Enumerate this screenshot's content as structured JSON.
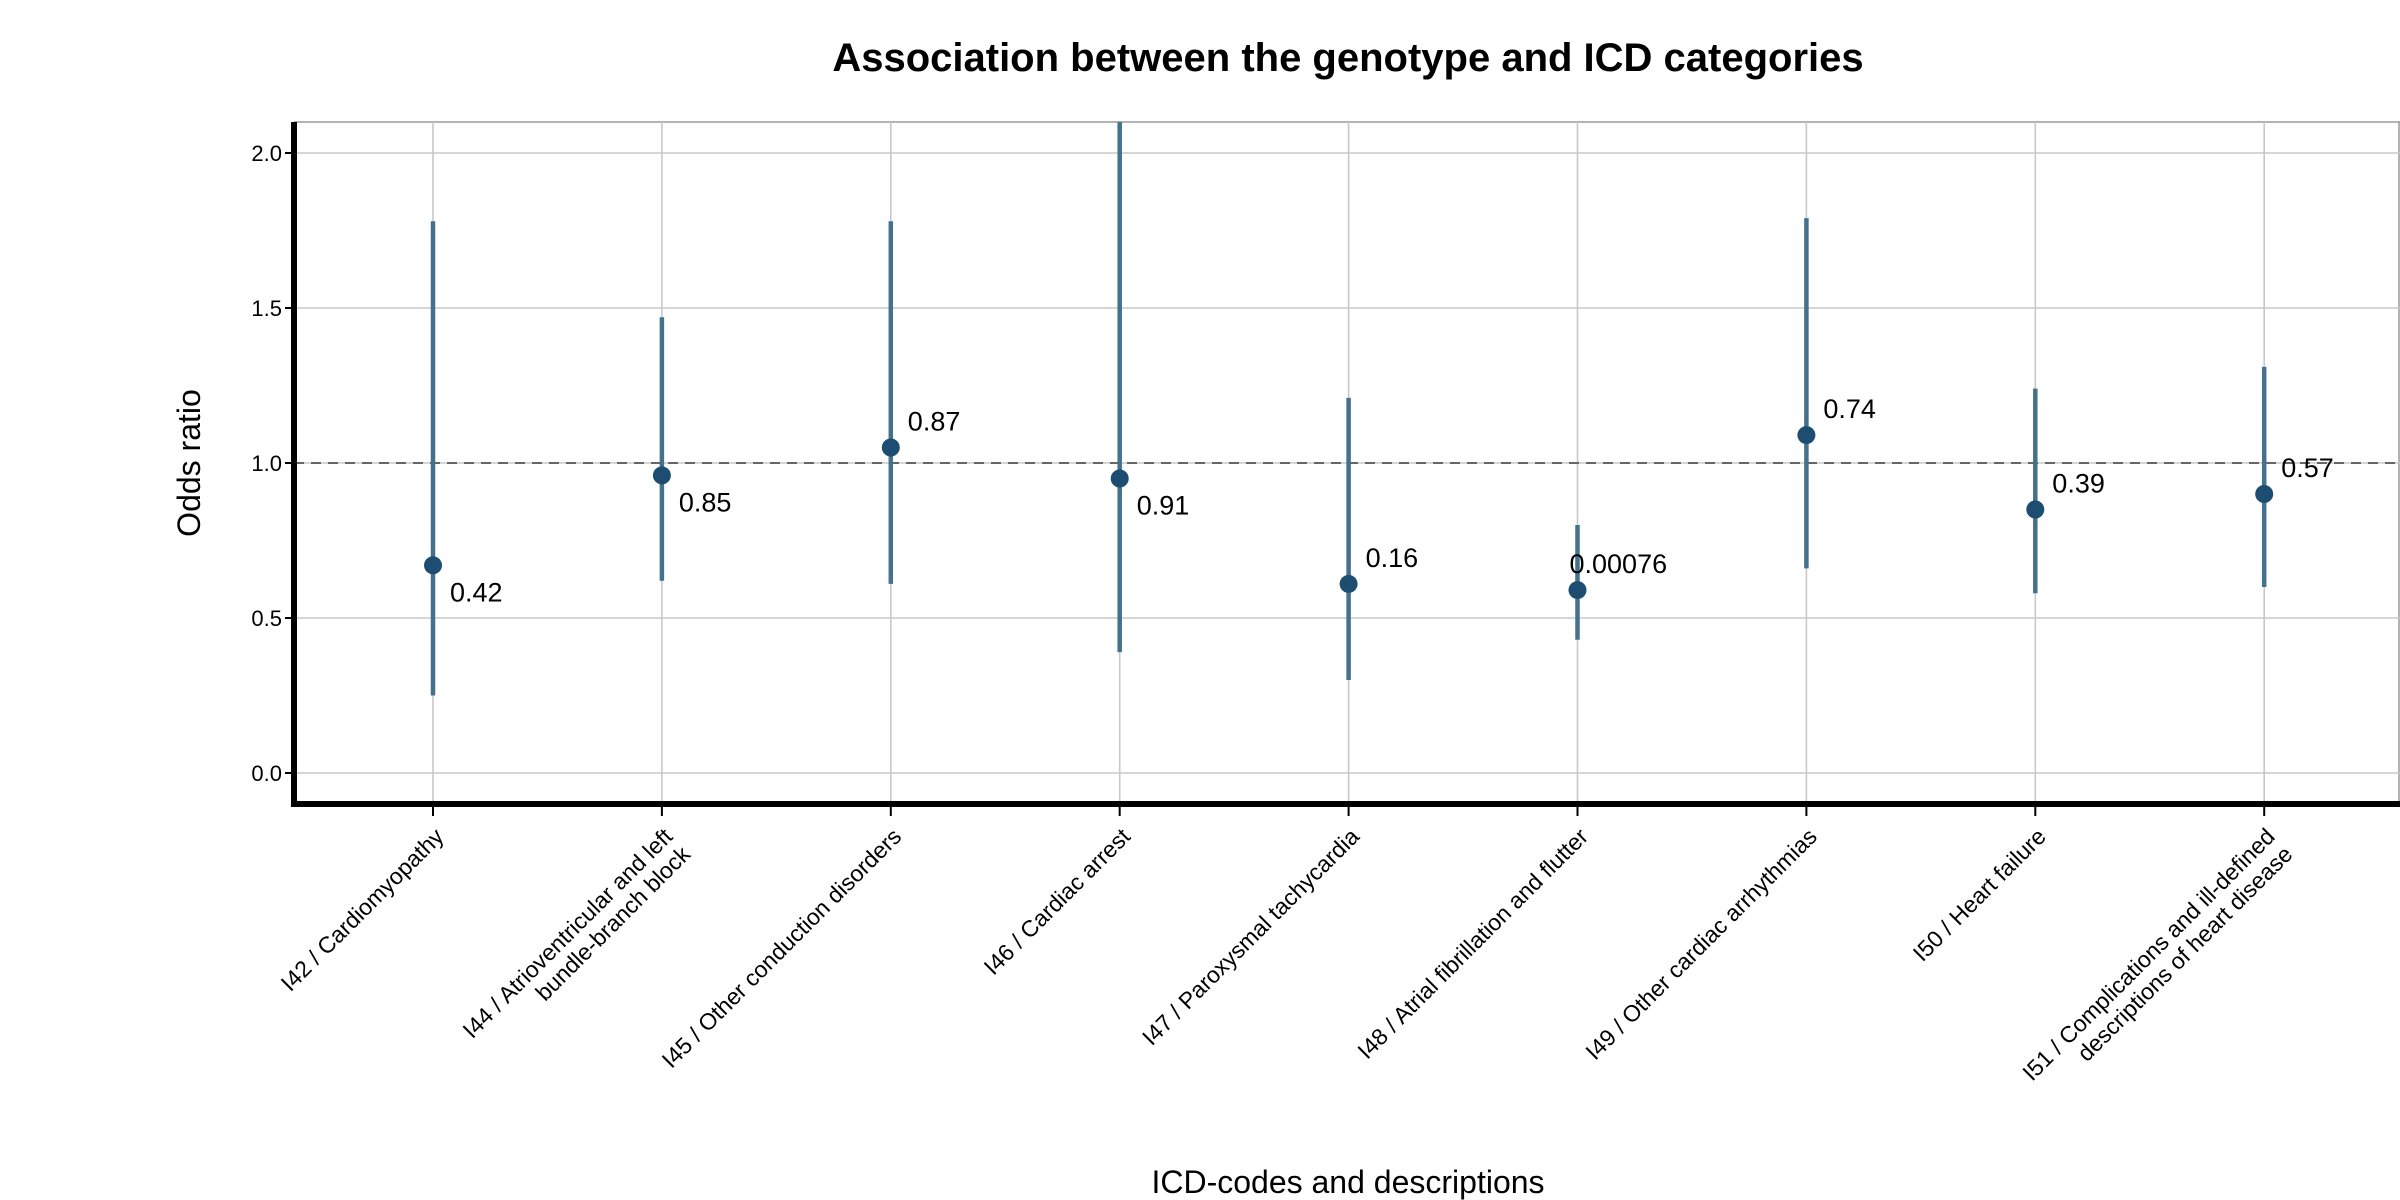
{
  "chart_data": {
    "type": "scatter",
    "title": "Association between the genotype and ICD categories",
    "xlabel": "ICD-codes and descriptions",
    "ylabel": "Odds ratio",
    "ylim": [
      -0.1,
      2.1
    ],
    "yticks": [
      "0.0",
      "0.5",
      "1.0",
      "1.5",
      "2.0"
    ],
    "reference_line": 1.0,
    "grid": true,
    "legend": "none",
    "colors": {
      "point": "#1d4e72",
      "interval": "#44718c",
      "reference": "#555555"
    },
    "categories": [
      {
        "code": "I42",
        "lines": [
          "I42 / Cardiomyopathy"
        ],
        "or": 0.67,
        "low": 0.25,
        "high": 1.78,
        "label": "0.42"
      },
      {
        "code": "I44",
        "lines": [
          "I44 / Atrioventricular and left",
          "bundle-branch block"
        ],
        "or": 0.96,
        "low": 0.62,
        "high": 1.47,
        "label": "0.85"
      },
      {
        "code": "I45",
        "lines": [
          "I45 / Other conduction disorders"
        ],
        "or": 1.05,
        "low": 0.61,
        "high": 1.78,
        "label": "0.87"
      },
      {
        "code": "I46",
        "lines": [
          "I46 / Cardiac arrest"
        ],
        "or": 0.95,
        "low": 0.39,
        "high": 2.1,
        "label": "0.91"
      },
      {
        "code": "I47",
        "lines": [
          "I47 / Paroxysmal tachycardia"
        ],
        "or": 0.61,
        "low": 0.3,
        "high": 1.21,
        "label": "0.16"
      },
      {
        "code": "I48",
        "lines": [
          "I48 / Atrial fibrillation and flutter"
        ],
        "or": 0.59,
        "low": 0.43,
        "high": 0.8,
        "label": "0.00076"
      },
      {
        "code": "I49",
        "lines": [
          "I49 / Other cardiac arrhythmias"
        ],
        "or": 1.09,
        "low": 0.66,
        "high": 1.79,
        "label": "0.74"
      },
      {
        "code": "I50",
        "lines": [
          "I50 / Heart failure"
        ],
        "or": 0.85,
        "low": 0.58,
        "high": 1.24,
        "label": "0.39"
      },
      {
        "code": "I51",
        "lines": [
          "I51 / Complications and ill-defined",
          "descriptions of heart disease"
        ],
        "or": 0.9,
        "low": 0.6,
        "high": 1.31,
        "label": "0.57"
      }
    ]
  }
}
